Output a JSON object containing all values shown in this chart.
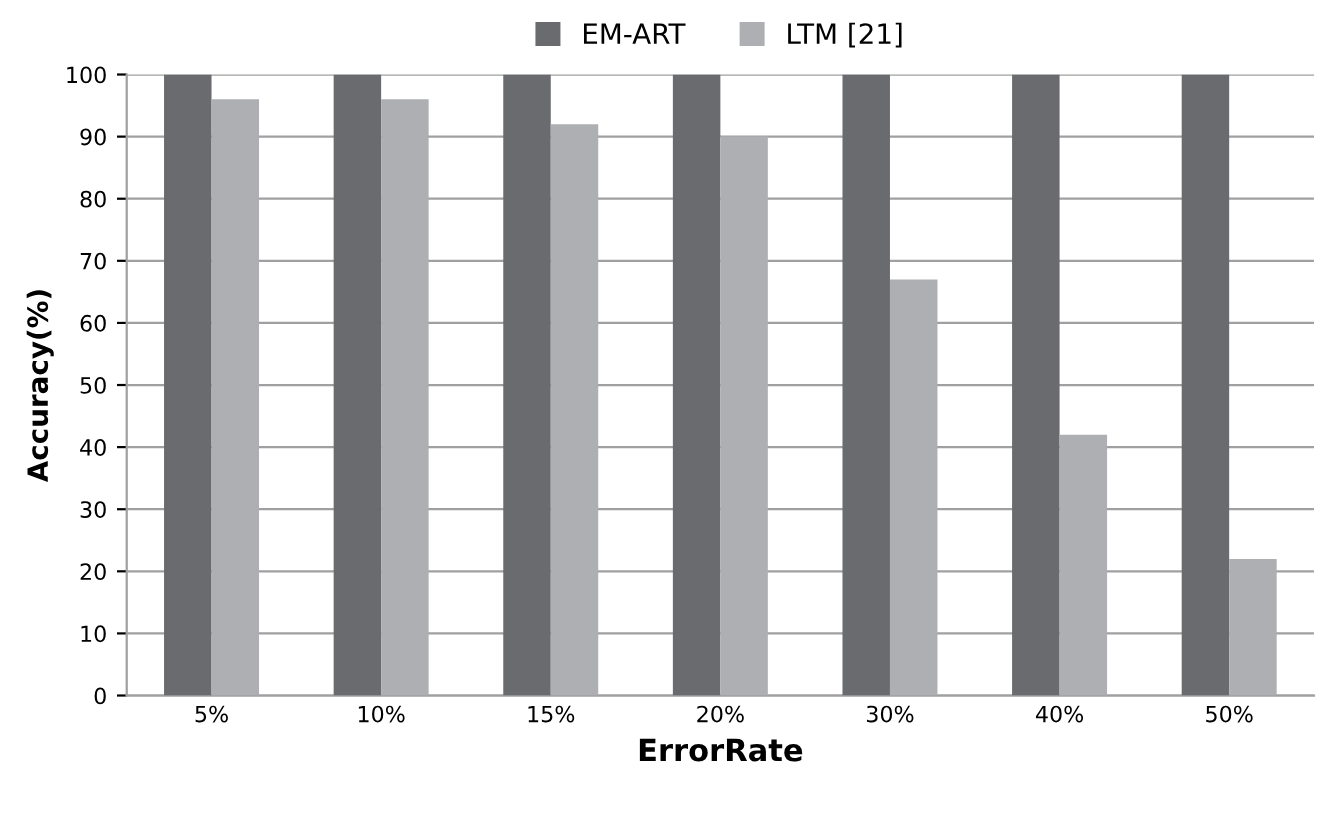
{
  "chart_data": {
    "type": "bar",
    "xlabel": "ErrorRate",
    "ylabel": "Accuracy(%)",
    "categories": [
      "5%",
      "10%",
      "15%",
      "20%",
      "30%",
      "40%",
      "50%"
    ],
    "series": [
      {
        "name": "EM-ART",
        "color": "#6a6b6f",
        "values": [
          100,
          100,
          100,
          100,
          100,
          100,
          100
        ]
      },
      {
        "name": "LTM [21]",
        "color": "#aeafb2",
        "values": [
          96,
          96,
          92,
          90,
          67,
          42,
          22
        ]
      }
    ],
    "ylim": [
      0,
      100
    ],
    "yticks": [
      0,
      10,
      20,
      30,
      40,
      50,
      60,
      70,
      80,
      90,
      100
    ],
    "grid": "y",
    "legend": "top"
  }
}
